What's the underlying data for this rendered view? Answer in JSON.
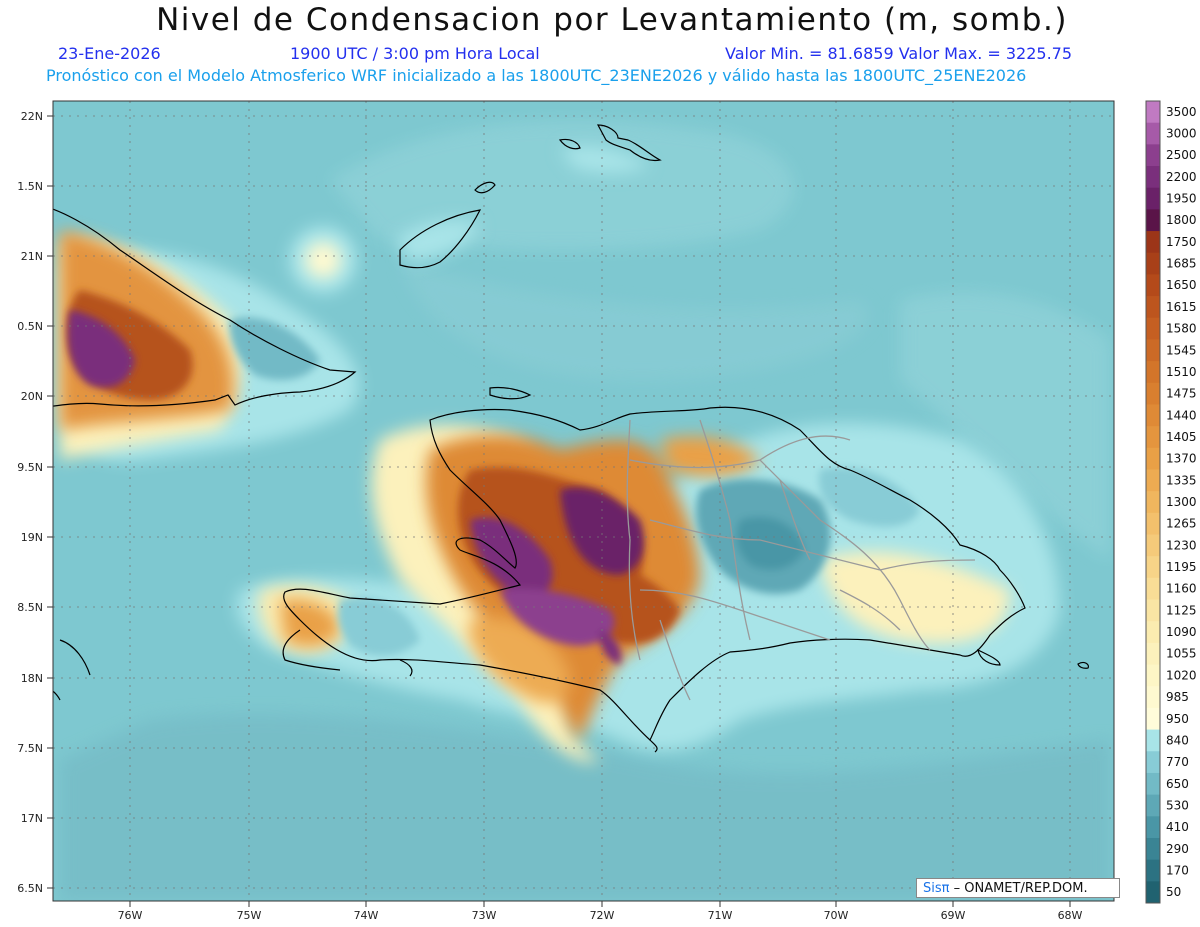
{
  "header": {
    "title": "Nivel de Condensacion por Levantamiento (m, somb.)",
    "date": "23-Ene-2026",
    "time": "1900 UTC / 3:00 pm Hora Local",
    "min_max": "Valor Min. = 81.6859   Valor Max. = 3225.75",
    "forecast": "Pronóstico con el Modelo Atmosferico WRF inicializado a las 1800UTC_23ENE2026 y válido hasta las  1800UTC_25ENE2026"
  },
  "axes": {
    "lat_labels": [
      "22N",
      "1.5N",
      "21N",
      "0.5N",
      "20N",
      "9.5N",
      "19N",
      "8.5N",
      "18N",
      "7.5N",
      "17N",
      "6.5N"
    ],
    "lon_labels": [
      "76W",
      "75W",
      "74W",
      "73W",
      "72W",
      "71W",
      "70W",
      "69W",
      "68W"
    ]
  },
  "colorbar": {
    "labels": [
      "3500",
      "3000",
      "2500",
      "2200",
      "1950",
      "1800",
      "1750",
      "1685",
      "1650",
      "1615",
      "1580",
      "1545",
      "1510",
      "1475",
      "1440",
      "1405",
      "1370",
      "1335",
      "1300",
      "1265",
      "1230",
      "1195",
      "1160",
      "1125",
      "1090",
      "1055",
      "1020",
      "985",
      "950",
      "840",
      "770",
      "650",
      "530",
      "410",
      "290",
      "170",
      "50"
    ],
    "colors": [
      "#c07ac2",
      "#a65aa8",
      "#8c3f8e",
      "#7a2f7c",
      "#6a2168",
      "#5a1448",
      "#9c3518",
      "#a84018",
      "#b44a1a",
      "#bd551e",
      "#c55f22",
      "#cc6a26",
      "#d3752a",
      "#d97f2f",
      "#df8a36",
      "#e4953e",
      "#e9a046",
      "#edab52",
      "#f0b65e",
      "#f3c06c",
      "#f5ca7a",
      "#f7d488",
      "#f9dd96",
      "#fae5a4",
      "#fbecb0",
      "#fcf1bc",
      "#fdf6c6",
      "#fef9d0",
      "#fffcda",
      "#a8e4e8",
      "#88ccd6",
      "#72bac6",
      "#5ea8b6",
      "#4a96a6",
      "#3a8494",
      "#2c7282",
      "#206270"
    ]
  },
  "logo": {
    "brand": "Sisπ",
    "rest": " – ONAMET/REP.DOM."
  }
}
